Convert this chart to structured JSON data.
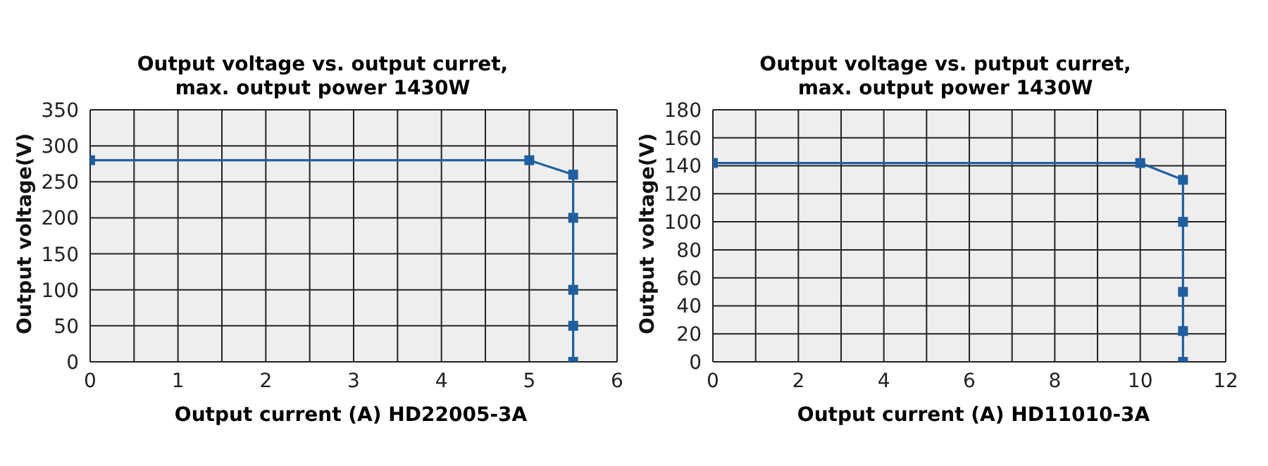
{
  "chart_data": [
    {
      "type": "line",
      "title": "Output voltage vs. output curret,\nmax. output power 1430W",
      "xlabel": "Output current (A)   HD22005-3A",
      "ylabel": "Output voltage(V)",
      "x": [
        0,
        5,
        5.5,
        5.5,
        5.5,
        5.5,
        5.5
      ],
      "series": [
        {
          "color": "#1f5f9f",
          "values": [
            280,
            280,
            260,
            200,
            100,
            50,
            0
          ]
        }
      ],
      "xlim": [
        0,
        6
      ],
      "xticks": [
        0,
        {
          "value": 0.5,
          "label": null
        },
        1,
        {
          "value": 1.5,
          "label": null
        },
        2,
        {
          "value": 2.5,
          "label": null
        },
        3,
        {
          "value": 3.5,
          "label": null
        },
        4,
        {
          "value": 4.5,
          "label": null
        },
        5,
        {
          "value": 5.5,
          "label": null
        },
        6
      ],
      "ylim": [
        0,
        350
      ],
      "yticks": [
        0,
        50,
        100,
        150,
        200,
        250,
        300,
        350
      ],
      "grid": true,
      "marker": "square",
      "line_style": "solid",
      "legend": false
    },
    {
      "type": "line",
      "title": "Output voltage vs. putput curret,\nmax. output power 1430W",
      "xlabel": "Output current (A)   HD11010-3A",
      "ylabel": "Output voltage(V)",
      "x": [
        0,
        10,
        11,
        11,
        11,
        11,
        11
      ],
      "series": [
        {
          "color": "#1f5f9f",
          "values": [
            142,
            142,
            130,
            100,
            50,
            22,
            0
          ]
        }
      ],
      "xlim": [
        0,
        12
      ],
      "xticks": [
        0,
        {
          "value": 1,
          "label": null
        },
        2,
        {
          "value": 3,
          "label": null
        },
        4,
        {
          "value": 5,
          "label": null
        },
        6,
        {
          "value": 7,
          "label": null
        },
        8,
        {
          "value": 9,
          "label": null
        },
        10,
        {
          "value": 11,
          "label": null
        },
        12
      ],
      "ylim": [
        0,
        180
      ],
      "yticks": [
        0,
        20,
        40,
        60,
        80,
        100,
        120,
        140,
        160,
        180
      ],
      "grid": true,
      "marker": "square",
      "line_style": "solid",
      "legend": false
    }
  ]
}
